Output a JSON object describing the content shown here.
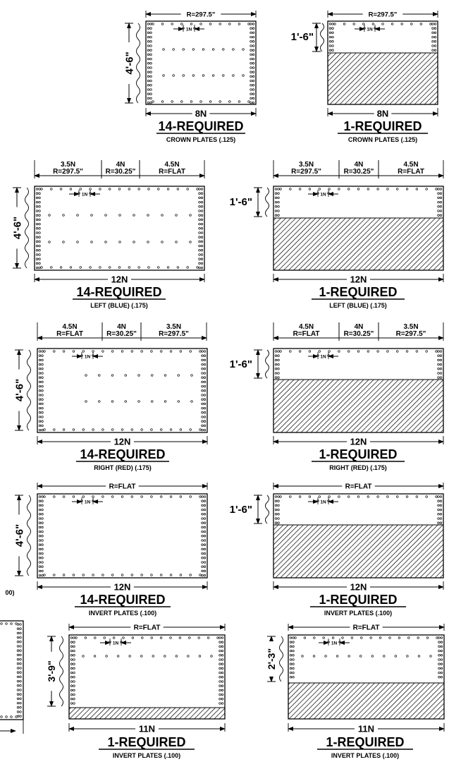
{
  "dims": {
    "r_2975": "R=297.5\"",
    "r_3025": "R=30.25\"",
    "r_flat": "R=FLAT",
    "n1": "1N",
    "n35": "3.5N",
    "n4": "4N",
    "n45": "4.5N",
    "n8": "8N",
    "n11": "11N",
    "n12": "12N",
    "h46": "4'-6\"",
    "h16": "1'-6\"",
    "h39": "3'-9\"",
    "h23": "2'-3\""
  },
  "req": {
    "r14": "14-REQUIRED",
    "r1": "1-REQUIRED"
  },
  "captions": {
    "crown": "CROWN PLATES (.125)",
    "left": "LEFT (BLUE) (.175)",
    "right": "RIGHT (RED) (.175)",
    "invert": "INVERT PLATES (.100)",
    "partial_invert": "00)"
  }
}
